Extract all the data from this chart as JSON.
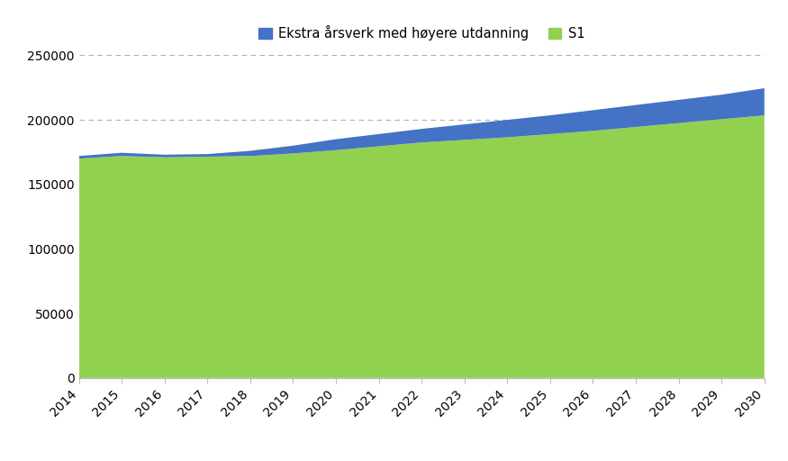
{
  "years": [
    2014,
    2015,
    2016,
    2017,
    2018,
    2019,
    2020,
    2021,
    2022,
    2023,
    2024,
    2025,
    2026,
    2027,
    2028,
    2029,
    2030
  ],
  "s1": [
    170000,
    172000,
    171000,
    171500,
    172000,
    174000,
    176500,
    179500,
    182500,
    184500,
    186500,
    189000,
    191500,
    194500,
    197500,
    200500,
    203500
  ],
  "extra": [
    2000,
    2500,
    2000,
    2000,
    4000,
    6000,
    8500,
    9500,
    10500,
    12000,
    13500,
    14500,
    16000,
    17000,
    18000,
    19000,
    21000
  ],
  "s1_color": "#92D050",
  "extra_color": "#4472C4",
  "legend_s1": "S1",
  "legend_extra": "Ekstra årsverk med høyere utdanning",
  "ylim": [
    0,
    250000
  ],
  "yticks": [
    0,
    50000,
    100000,
    150000,
    200000,
    250000
  ],
  "xlim_start": 2014,
  "xlim_end": 2030,
  "background_color": "#ffffff",
  "grid_color": "#b0b0b0",
  "tick_fontsize": 10,
  "legend_fontsize": 10.5
}
